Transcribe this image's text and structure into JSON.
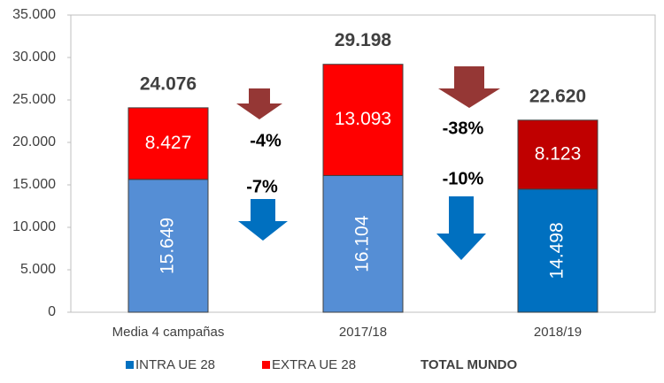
{
  "chart_data": {
    "type": "stacked_bar",
    "categories": [
      "Media 4 campañas",
      "2017/18",
      "2018/19"
    ],
    "series": [
      {
        "name": "INTRA UE 28",
        "color": "#0070c0",
        "colors": [
          "#558ed5",
          "#558ed5",
          "#0070c0"
        ],
        "values": [
          15649,
          16104,
          14498
        ],
        "value_labels": [
          "15.649",
          "16.104",
          "14.498"
        ]
      },
      {
        "name": "EXTRA UE 28",
        "color": "#ff0000",
        "colors": [
          "#ff0000",
          "#ff0000",
          "#c00000"
        ],
        "values": [
          8427,
          13093,
          8123
        ],
        "value_labels": [
          "8.427",
          "13.093",
          "8.123"
        ]
      }
    ],
    "totals": {
      "name": "TOTAL MUNDO",
      "values": [
        24076,
        29198,
        22620
      ],
      "value_labels": [
        "24.076",
        "29.198",
        "22.620"
      ]
    },
    "annotations": [
      {
        "text": "-4%",
        "arrow_color": "#953735"
      },
      {
        "text": "-7%",
        "arrow_color": "#0070c0"
      },
      {
        "text": "-38%",
        "arrow_color": "#953735"
      },
      {
        "text": "-10%",
        "arrow_color": "#0070c0"
      }
    ],
    "ylim": [
      0,
      35000
    ],
    "yticks": [
      0,
      {
        "value": 5000,
        "label": "5.000"
      },
      {
        "value": 10000,
        "label": "10.000"
      },
      {
        "value": 15000,
        "label": "15.000"
      },
      {
        "value": 20000,
        "label": "20.000"
      },
      {
        "value": 25000,
        "label": "25.000"
      },
      {
        "value": 30000,
        "label": "30.000"
      },
      {
        "value": 35000,
        "label": "35.000"
      }
    ],
    "grid": false
  }
}
